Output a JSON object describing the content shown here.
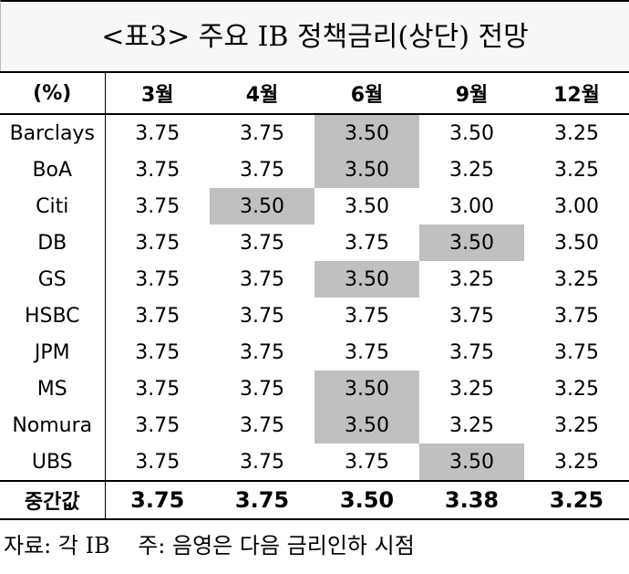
{
  "title": "<표3> 주요 IB 정책금리(상단) 전망",
  "table": {
    "header": [
      "(%)",
      "3월",
      "4월",
      "6월",
      "9월",
      "12월"
    ],
    "highlight_color": "#c0c0c0",
    "rows": [
      {
        "name": "Barclays",
        "values": [
          "3.75",
          "3.75",
          "3.50",
          "3.50",
          "3.25"
        ],
        "highlight": 2
      },
      {
        "name": "BoA",
        "values": [
          "3.75",
          "3.75",
          "3.50",
          "3.25",
          "3.25"
        ],
        "highlight": 2
      },
      {
        "name": "Citi",
        "values": [
          "3.75",
          "3.50",
          "3.50",
          "3.00",
          "3.00"
        ],
        "highlight": 1
      },
      {
        "name": "DB",
        "values": [
          "3.75",
          "3.75",
          "3.75",
          "3.50",
          "3.50"
        ],
        "highlight": 3
      },
      {
        "name": "GS",
        "values": [
          "3.75",
          "3.75",
          "3.50",
          "3.25",
          "3.25"
        ],
        "highlight": 2
      },
      {
        "name": "HSBC",
        "values": [
          "3.75",
          "3.75",
          "3.75",
          "3.75",
          "3.75"
        ]
      },
      {
        "name": "JPM",
        "values": [
          "3.75",
          "3.75",
          "3.75",
          "3.75",
          "3.75"
        ]
      },
      {
        "name": "MS",
        "values": [
          "3.75",
          "3.75",
          "3.50",
          "3.25",
          "3.25"
        ],
        "highlight": 2
      },
      {
        "name": "Nomura",
        "values": [
          "3.75",
          "3.75",
          "3.50",
          "3.25",
          "3.25"
        ],
        "highlight": 2
      },
      {
        "name": "UBS",
        "values": [
          "3.75",
          "3.75",
          "3.75",
          "3.50",
          "3.25"
        ],
        "highlight": 3
      }
    ],
    "median": {
      "name": "중간값",
      "values": [
        "3.75",
        "3.75",
        "3.50",
        "3.38",
        "3.25"
      ]
    }
  },
  "note": "자료: 각 IB    주: 음영은 다음 금리인하 시점"
}
